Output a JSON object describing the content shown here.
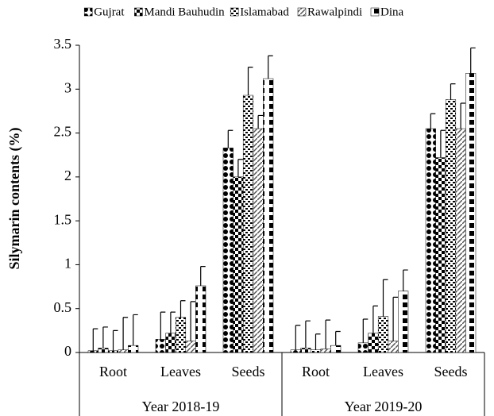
{
  "chart_data": {
    "type": "bar",
    "y_label": "Silymarin contents (%)",
    "category_groups": [
      {
        "label": "Year 2018-19",
        "categories": [
          "Root",
          "Leaves",
          "Seeds"
        ]
      },
      {
        "label": "Year 2019-20",
        "categories": [
          "Root",
          "Leaves",
          "Seeds"
        ]
      }
    ],
    "series": [
      {
        "name": "Gujrat",
        "color": "#000000",
        "pattern": "dots",
        "values": [
          0.02,
          0.15,
          2.33,
          0.03,
          0.11,
          2.55
        ],
        "errors": [
          0.25,
          0.31,
          0.2,
          0.28,
          0.27,
          0.17
        ]
      },
      {
        "name": "Mandi Bauhudin",
        "color": "#000000",
        "pattern": "checker",
        "values": [
          0.05,
          0.22,
          2.0,
          0.05,
          0.22,
          2.22
        ],
        "errors": [
          0.24,
          0.24,
          0.2,
          0.31,
          0.31,
          0.31
        ]
      },
      {
        "name": "Islamabad",
        "color": "#000000",
        "pattern": "dashes",
        "values": [
          0.02,
          0.4,
          2.93,
          0.03,
          0.41,
          2.88
        ],
        "errors": [
          0.23,
          0.19,
          0.32,
          0.18,
          0.42,
          0.18
        ]
      },
      {
        "name": "Rawalpindi",
        "color": "#000000",
        "pattern": "diagonal",
        "values": [
          0.03,
          0.13,
          2.55,
          0.04,
          0.13,
          2.55
        ],
        "errors": [
          0.37,
          0.45,
          0.15,
          0.33,
          0.5,
          0.29
        ]
      },
      {
        "name": "Dina",
        "color": "#000000",
        "pattern": "blocks",
        "values": [
          0.08,
          0.76,
          3.12,
          0.08,
          0.7,
          3.18
        ],
        "errors": [
          0.35,
          0.22,
          0.26,
          0.16,
          0.24,
          0.29
        ]
      }
    ],
    "ylim": [
      0,
      3.5
    ],
    "yticks": [
      0,
      0.5,
      1,
      {
        "value": 1.5,
        "label": "1.5"
      },
      2,
      2.5,
      3,
      3.5
    ],
    "grid": false
  }
}
